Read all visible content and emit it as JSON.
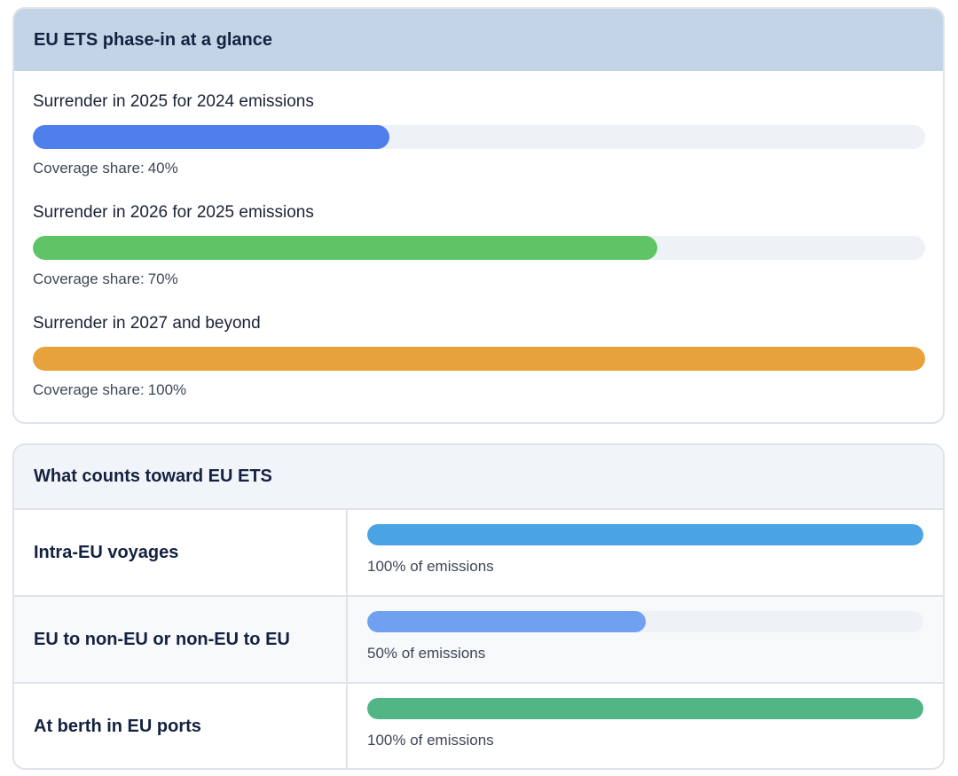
{
  "phase_card": {
    "title": "EU ETS phase-in at a glance",
    "share_label": "Coverage share:",
    "items": [
      {
        "label": "Surrender in 2025 for 2024 emissions",
        "share": 40,
        "share_text": "40%",
        "color": "#4f7fea"
      },
      {
        "label": "Surrender in 2026 for 2025 emissions",
        "share": 70,
        "share_text": "70%",
        "color": "#5ec466"
      },
      {
        "label": "Surrender in 2027 and beyond",
        "share": 100,
        "share_text": "100%",
        "color": "#e8a23c"
      }
    ]
  },
  "counts_card": {
    "title": "What counts toward EU ETS",
    "rows": [
      {
        "label": "Intra-EU voyages",
        "share": 100,
        "caption": "100% of emissions",
        "color": "#4aa3e3"
      },
      {
        "label": "EU to non-EU or non-EU to EU",
        "share": 50,
        "caption": "50% of emissions",
        "color": "#6fa1f0"
      },
      {
        "label": "At berth in EU ports",
        "share": 100,
        "caption": "100% of emissions",
        "color": "#52b586"
      }
    ]
  }
}
